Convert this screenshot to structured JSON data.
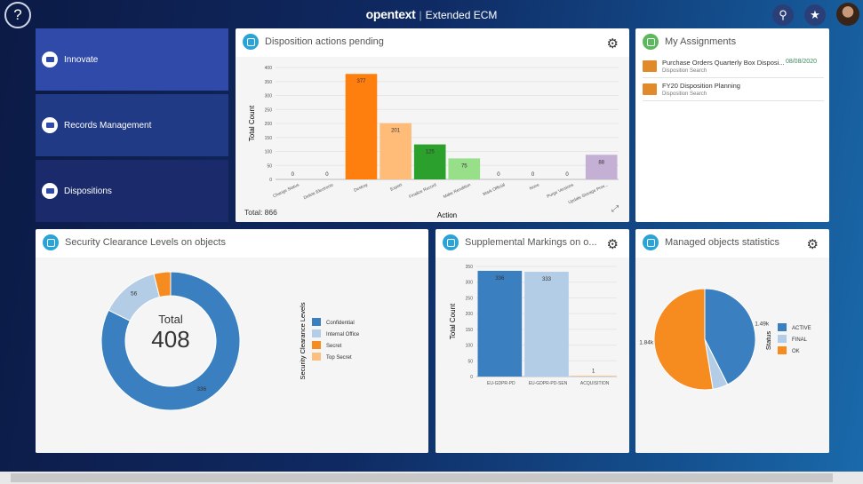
{
  "header": {
    "brand": "opentext",
    "product": "Extended ECM",
    "help": "?"
  },
  "nav": [
    {
      "label": "Innovate"
    },
    {
      "label": "Records Management"
    },
    {
      "label": "Dispositions"
    }
  ],
  "disposition": {
    "title": "Disposition actions pending",
    "total": "Total: 866"
  },
  "assignments": {
    "title": "My Assignments",
    "items": [
      {
        "title": "Purchase Orders Quarterly Box Disposi...",
        "sub": "Disposition Search",
        "date": "08/08/2020"
      },
      {
        "title": "FY20 Disposition Planning",
        "sub": "Disposition Search",
        "date": ""
      }
    ]
  },
  "security": {
    "title": "Security Clearance Levels on objects",
    "total_label": "Total",
    "total_value": "408"
  },
  "supplemental": {
    "title": "Supplemental Markings on o..."
  },
  "managed": {
    "title": "Managed objects statistics"
  },
  "chart_data": [
    {
      "type": "bar",
      "xlabel": "Action",
      "ylabel": "Total Count",
      "ylim": [
        0,
        400
      ],
      "yticks": [
        0,
        50,
        100,
        150,
        200,
        250,
        300,
        350,
        400
      ],
      "categories": [
        "Change Status",
        "Delete Electronic",
        "Destroy",
        "Export",
        "Finalize Record",
        "Make Rendition",
        "Mark Official",
        "None",
        "Purge Versions",
        "Update Storage Prov..."
      ],
      "values": [
        0,
        0,
        377,
        201,
        125,
        75,
        0,
        0,
        0,
        88
      ],
      "colors": [
        "#1f77b4",
        "#aec7e8",
        "#ff7f0e",
        "#ffbb78",
        "#2ca02c",
        "#98df8a",
        "#d62728",
        "#ff9896",
        "#9467bd",
        "#c5b0d5"
      ]
    },
    {
      "type": "pie",
      "donut": true,
      "legend_title": "Security Clearance Levels",
      "categories": [
        "Confidential",
        "Internal Office",
        "Secret",
        "Top Secret"
      ],
      "values": [
        336,
        56,
        16,
        0
      ],
      "labels": [
        "336",
        "56",
        "",
        ""
      ],
      "colors": [
        "#3a7fbf",
        "#b4cde6",
        "#f68b1f",
        "#fdbf80"
      ],
      "legend": "right"
    },
    {
      "type": "bar",
      "ylabel": "Total Count",
      "ylim": [
        0,
        350
      ],
      "yticks": [
        0,
        50,
        100,
        150,
        200,
        250,
        300,
        350
      ],
      "categories": [
        "EU-GDPR-PD",
        "EU-GDPR-PD-SEN",
        "ACQUISITION"
      ],
      "values": [
        336,
        333,
        1
      ],
      "colors": [
        "#3a7fbf",
        "#b4cde6",
        "#f68b1f"
      ]
    },
    {
      "type": "pie",
      "legend_title": "Status",
      "categories": [
        "ACTIVE",
        "FINAL",
        "OK"
      ],
      "values": [
        1490,
        170,
        1840
      ],
      "labels": [
        "1.49k",
        "",
        "1.84k"
      ],
      "colors": [
        "#3a7fbf",
        "#b4cde6",
        "#f68b1f"
      ],
      "legend": "right"
    }
  ]
}
